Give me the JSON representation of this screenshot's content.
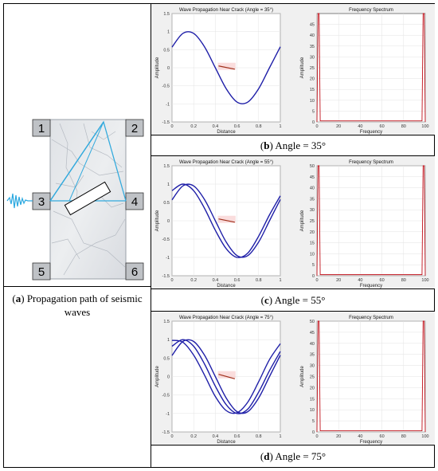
{
  "caption_a_letter": "a",
  "caption_a_text": "Propagation path of seismic waves",
  "sensor_labels": [
    "1",
    "2",
    "3",
    "4",
    "5",
    "6"
  ],
  "panels": [
    {
      "caption_letter": "b",
      "caption_text": "Angle = 35°",
      "wave_title": "Wave Propagation Near Crack (Angle = 35°)",
      "n_waves": 1
    },
    {
      "caption_letter": "c",
      "caption_text": "Angle = 55°",
      "wave_title": "Wave Propagation Near Crack (Angle = 55°)",
      "n_waves": 2
    },
    {
      "caption_letter": "d",
      "caption_text": "Angle = 75°",
      "wave_title": "Wave Propagation Near Crack (Angle = 75°)",
      "n_waves": 3
    }
  ],
  "chart_data": [
    {
      "type": "line",
      "title": "Wave Propagation Near Crack (Angle = 35°)",
      "xlabel": "Distance",
      "ylabel": "Amplitude",
      "xlim": [
        0,
        1
      ],
      "ylim": [
        -1.5,
        1.5
      ],
      "xticks": [
        "0",
        "0.2",
        "0.4",
        "0.6",
        "0.8",
        "1"
      ],
      "yticks": [
        "-1.5",
        "-1",
        "-0.5",
        "0",
        "0.5",
        "1",
        "1.5"
      ],
      "series": [
        {
          "x": [
            0,
            0.1,
            0.2,
            0.3,
            0.4,
            0.5,
            0.6,
            0.7,
            0.8,
            0.9,
            1.0
          ],
          "values": [
            0.57,
            0.95,
            0.95,
            0.58,
            0.0,
            -0.58,
            -0.95,
            -0.95,
            -0.58,
            0.0,
            0.58
          ],
          "color": "#1f1fa8"
        }
      ],
      "crack": {
        "x": [
          0.43,
          0.58
        ],
        "y": [
          0.05,
          -0.04
        ],
        "color": "#a0301c"
      }
    },
    {
      "type": "line",
      "title": "Frequency Spectrum",
      "xlabel": "Frequency",
      "ylabel": "Amplitude",
      "xlim": [
        0,
        100
      ],
      "ylim": [
        0,
        50
      ],
      "xticks": [
        "0",
        "20",
        "40",
        "60",
        "80",
        "100"
      ],
      "yticks": [
        "0",
        "5",
        "10",
        "15",
        "20",
        "25",
        "30",
        "35",
        "40",
        "45"
      ],
      "series": [
        {
          "x": [
            0,
            1,
            2,
            3,
            50,
            97,
            98,
            99,
            100
          ],
          "values": [
            0,
            50,
            50,
            0.5,
            0.5,
            0.5,
            50,
            50,
            0
          ],
          "color": "#c0101a"
        }
      ]
    },
    {
      "type": "line",
      "title": "Wave Propagation Near Crack (Angle = 55°)",
      "xlabel": "Distance",
      "ylabel": "Amplitude",
      "xlim": [
        0,
        1
      ],
      "ylim": [
        -1.5,
        1.5
      ],
      "xticks": [
        "0",
        "0.2",
        "0.4",
        "0.6",
        "0.8",
        "1"
      ],
      "yticks": [
        "-1.5",
        "-1",
        "-0.5",
        "0",
        "0.5",
        "1",
        "1.5"
      ],
      "series": [
        {
          "x": [
            0,
            0.1,
            0.2,
            0.3,
            0.4,
            0.5,
            0.6,
            0.7,
            0.8,
            0.9,
            1.0
          ],
          "values": [
            0.57,
            0.95,
            0.95,
            0.58,
            0.0,
            -0.58,
            -0.95,
            -0.95,
            -0.58,
            0.0,
            0.58
          ],
          "color": "#1f1fa8"
        },
        {
          "x": [
            0,
            0.1,
            0.2,
            0.3,
            0.4,
            0.5,
            0.6,
            0.7,
            0.8,
            0.9,
            1.0
          ],
          "values": [
            0.82,
            1.0,
            0.82,
            0.34,
            -0.26,
            -0.76,
            -1.0,
            -0.88,
            -0.42,
            0.16,
            0.68
          ],
          "color": "#1f1fa8"
        }
      ],
      "crack": {
        "x": [
          0.43,
          0.58
        ],
        "y": [
          0.05,
          -0.04
        ],
        "color": "#a0301c"
      }
    },
    {
      "type": "line",
      "title": "Frequency Spectrum",
      "xlabel": "Frequency",
      "ylabel": "Amplitude",
      "xlim": [
        0,
        100
      ],
      "ylim": [
        0,
        50
      ],
      "xticks": [
        "0",
        "20",
        "40",
        "60",
        "80",
        "100"
      ],
      "yticks": [
        "0",
        "5",
        "10",
        "15",
        "20",
        "25",
        "30",
        "35",
        "40",
        "45",
        "50"
      ],
      "series": [
        {
          "x": [
            0,
            1,
            2,
            3,
            50,
            97,
            98,
            99,
            100
          ],
          "values": [
            0,
            50,
            50,
            0.5,
            0.5,
            0.5,
            50,
            50,
            0
          ],
          "color": "#c0101a"
        }
      ]
    },
    {
      "type": "line",
      "title": "Wave Propagation Near Crack (Angle = 75°)",
      "xlabel": "Distance",
      "ylabel": "Amplitude",
      "xlim": [
        0,
        1
      ],
      "ylim": [
        -1.5,
        1.5
      ],
      "xticks": [
        "0",
        "0.2",
        "0.4",
        "0.6",
        "0.8",
        "1"
      ],
      "yticks": [
        "-1.5",
        "-1",
        "-0.5",
        "0",
        "0.5",
        "1",
        "1.5"
      ],
      "series": [
        {
          "x": [
            0,
            0.1,
            0.2,
            0.3,
            0.4,
            0.5,
            0.6,
            0.7,
            0.8,
            0.9,
            1.0
          ],
          "values": [
            0.57,
            0.95,
            0.95,
            0.58,
            0.0,
            -0.58,
            -0.95,
            -0.95,
            -0.58,
            0.0,
            0.58
          ],
          "color": "#1f1fa8"
        },
        {
          "x": [
            0,
            0.1,
            0.2,
            0.3,
            0.4,
            0.5,
            0.6,
            0.7,
            0.8,
            0.9,
            1.0
          ],
          "values": [
            0.82,
            1.0,
            0.82,
            0.34,
            -0.26,
            -0.76,
            -1.0,
            -0.88,
            -0.42,
            0.16,
            0.68
          ],
          "color": "#1f1fa8"
        },
        {
          "x": [
            0,
            0.1,
            0.2,
            0.3,
            0.4,
            0.5,
            0.6,
            0.7,
            0.8,
            0.9,
            1.0
          ],
          "values": [
            0.98,
            0.93,
            0.58,
            0.04,
            -0.54,
            -0.92,
            -0.98,
            -0.69,
            -0.14,
            0.46,
            0.89
          ],
          "color": "#1f1fa8"
        }
      ],
      "crack": {
        "x": [
          0.43,
          0.58
        ],
        "y": [
          0.06,
          -0.06
        ],
        "color": "#a0301c"
      }
    },
    {
      "type": "line",
      "title": "Frequency Spectrum",
      "xlabel": "Frequency",
      "ylabel": "Amplitude",
      "xlim": [
        0,
        100
      ],
      "ylim": [
        0,
        50
      ],
      "xticks": [
        "0",
        "20",
        "40",
        "60",
        "80",
        "100"
      ],
      "yticks": [
        "0",
        "5",
        "10",
        "15",
        "20",
        "25",
        "30",
        "35",
        "40",
        "45",
        "50"
      ],
      "series": [
        {
          "x": [
            0,
            1,
            2,
            3,
            50,
            97,
            98,
            99,
            100
          ],
          "values": [
            0,
            50,
            50,
            0.5,
            0.5,
            0.5,
            50,
            50,
            0
          ],
          "color": "#c0101a"
        }
      ]
    }
  ]
}
